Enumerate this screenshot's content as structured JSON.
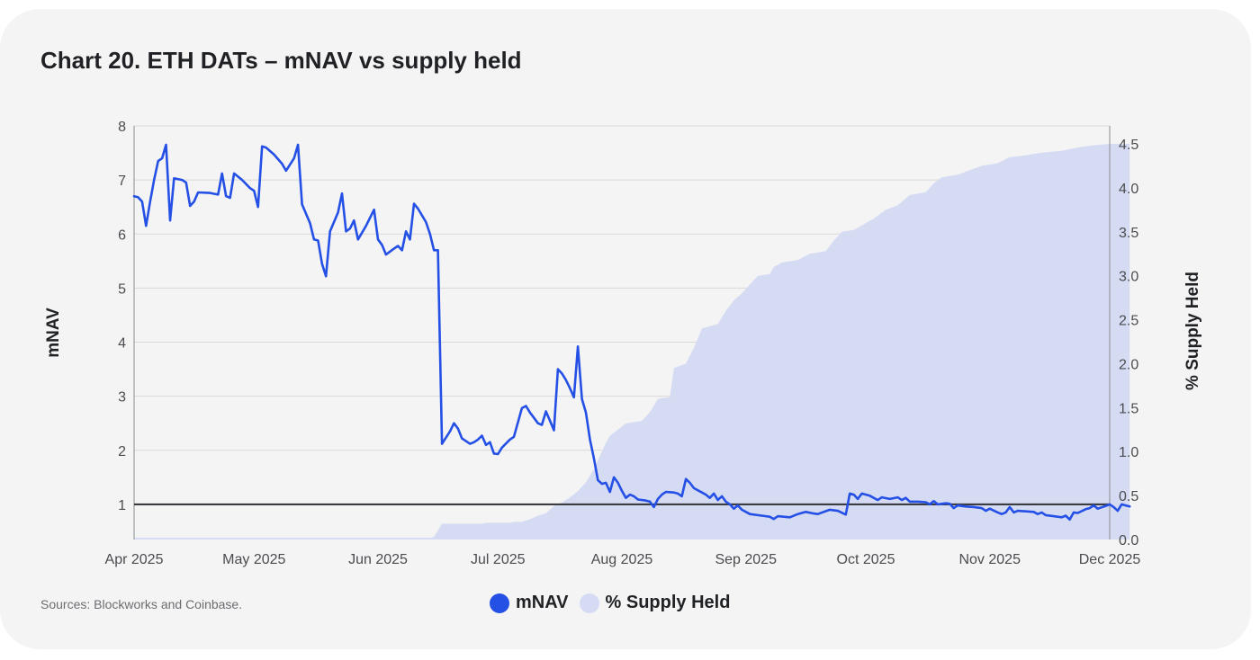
{
  "title": "Chart 20.  ETH DATs – mNAV vs supply held",
  "source": "Sources: Blockworks and Coinbase.",
  "colors": {
    "mnav": "#2450e6",
    "supply": "#d6dbf4",
    "reference_line": "#3a3c40",
    "grid": "#d8d8d8"
  },
  "chart_data": {
    "type": "line",
    "xlim": [
      "2025-04-01",
      "2025-12-01"
    ],
    "x_ticks": [
      "Apr 2025",
      "May 2025",
      "Jun 2025",
      "Jul 2025",
      "Aug 2025",
      "Sep 2025",
      "Oct 2025",
      "Nov 2025",
      "Dec 2025"
    ],
    "y_left": {
      "label": "mNAV",
      "range": [
        0.35,
        8
      ],
      "ticks": [
        1,
        2,
        3,
        4,
        5,
        6,
        7,
        8
      ]
    },
    "y_right": {
      "label": "% Supply Held",
      "range": [
        0,
        4.5
      ],
      "ticks": [
        "0.0",
        "0.5",
        "1.0",
        "1.5",
        "2.0",
        "2.5",
        "3.0",
        "3.5",
        "4.0",
        "4.5"
      ]
    },
    "reference_line": {
      "axis": "left",
      "y": 1
    },
    "grid": "horizontal",
    "legend": {
      "placement": "bottom-center",
      "entries": [
        "mNAV",
        "% Supply Held"
      ]
    },
    "series": [
      {
        "name": "mNAV",
        "type": "line",
        "axis": "left",
        "points": [
          [
            "2025-04-01",
            6.7
          ],
          [
            "2025-04-02",
            6.68
          ],
          [
            "2025-04-03",
            6.6
          ],
          [
            "2025-04-04",
            6.15
          ],
          [
            "2025-04-05",
            6.6
          ],
          [
            "2025-04-06",
            7.0
          ],
          [
            "2025-04-07",
            7.35
          ],
          [
            "2025-04-08",
            7.4
          ],
          [
            "2025-04-09",
            7.65
          ],
          [
            "2025-04-10",
            6.25
          ],
          [
            "2025-04-11",
            7.03
          ],
          [
            "2025-04-13",
            7.0
          ],
          [
            "2025-04-14",
            6.95
          ],
          [
            "2025-04-15",
            6.52
          ],
          [
            "2025-04-16",
            6.6
          ],
          [
            "2025-04-17",
            6.77
          ],
          [
            "2025-04-20",
            6.76
          ],
          [
            "2025-04-22",
            6.73
          ],
          [
            "2025-04-23",
            7.12
          ],
          [
            "2025-04-24",
            6.7
          ],
          [
            "2025-04-25",
            6.67
          ],
          [
            "2025-04-26",
            7.12
          ],
          [
            "2025-04-28",
            7.0
          ],
          [
            "2025-04-30",
            6.85
          ],
          [
            "2025-05-01",
            6.8
          ],
          [
            "2025-05-02",
            6.5
          ],
          [
            "2025-05-03",
            7.62
          ],
          [
            "2025-05-04",
            7.6
          ],
          [
            "2025-05-06",
            7.47
          ],
          [
            "2025-05-08",
            7.3
          ],
          [
            "2025-05-09",
            7.17
          ],
          [
            "2025-05-11",
            7.4
          ],
          [
            "2025-05-12",
            7.65
          ],
          [
            "2025-05-13",
            6.55
          ],
          [
            "2025-05-15",
            6.2
          ],
          [
            "2025-05-16",
            5.9
          ],
          [
            "2025-05-17",
            5.88
          ],
          [
            "2025-05-18",
            5.45
          ],
          [
            "2025-05-19",
            5.22
          ],
          [
            "2025-05-20",
            6.05
          ],
          [
            "2025-05-22",
            6.4
          ],
          [
            "2025-05-23",
            6.75
          ],
          [
            "2025-05-24",
            6.05
          ],
          [
            "2025-05-25",
            6.1
          ],
          [
            "2025-05-26",
            6.25
          ],
          [
            "2025-05-27",
            5.9
          ],
          [
            "2025-05-29",
            6.15
          ],
          [
            "2025-05-31",
            6.45
          ],
          [
            "2025-06-01",
            5.9
          ],
          [
            "2025-06-02",
            5.8
          ],
          [
            "2025-06-03",
            5.62
          ],
          [
            "2025-06-05",
            5.73
          ],
          [
            "2025-06-06",
            5.78
          ],
          [
            "2025-06-07",
            5.7
          ],
          [
            "2025-06-08",
            6.05
          ],
          [
            "2025-06-09",
            5.9
          ],
          [
            "2025-06-10",
            6.56
          ],
          [
            "2025-06-11",
            6.47
          ],
          [
            "2025-06-13",
            6.22
          ],
          [
            "2025-06-14",
            6.0
          ],
          [
            "2025-06-15",
            5.7
          ],
          [
            "2025-06-16",
            5.7
          ],
          [
            "2025-06-17",
            2.12
          ],
          [
            "2025-06-19",
            2.35
          ],
          [
            "2025-06-20",
            2.5
          ],
          [
            "2025-06-21",
            2.4
          ],
          [
            "2025-06-22",
            2.22
          ],
          [
            "2025-06-24",
            2.12
          ],
          [
            "2025-06-25",
            2.15
          ],
          [
            "2025-06-26",
            2.2
          ],
          [
            "2025-06-27",
            2.27
          ],
          [
            "2025-06-28",
            2.1
          ],
          [
            "2025-06-29",
            2.15
          ],
          [
            "2025-06-30",
            1.94
          ],
          [
            "2025-07-01",
            1.93
          ],
          [
            "2025-07-02",
            2.05
          ],
          [
            "2025-07-04",
            2.2
          ],
          [
            "2025-07-05",
            2.25
          ],
          [
            "2025-07-07",
            2.78
          ],
          [
            "2025-07-08",
            2.82
          ],
          [
            "2025-07-09",
            2.7
          ],
          [
            "2025-07-10",
            2.6
          ],
          [
            "2025-07-11",
            2.5
          ],
          [
            "2025-07-12",
            2.47
          ],
          [
            "2025-07-13",
            2.72
          ],
          [
            "2025-07-14",
            2.55
          ],
          [
            "2025-07-15",
            2.37
          ],
          [
            "2025-07-16",
            3.5
          ],
          [
            "2025-07-17",
            3.42
          ],
          [
            "2025-07-18",
            3.3
          ],
          [
            "2025-07-19",
            3.15
          ],
          [
            "2025-07-20",
            2.98
          ],
          [
            "2025-07-21",
            3.92
          ],
          [
            "2025-07-22",
            2.95
          ],
          [
            "2025-07-23",
            2.7
          ],
          [
            "2025-07-24",
            2.2
          ],
          [
            "2025-07-25",
            1.85
          ],
          [
            "2025-07-26",
            1.45
          ],
          [
            "2025-07-27",
            1.38
          ],
          [
            "2025-07-28",
            1.4
          ],
          [
            "2025-07-29",
            1.23
          ],
          [
            "2025-07-30",
            1.5
          ],
          [
            "2025-07-31",
            1.4
          ],
          [
            "2025-08-01",
            1.25
          ],
          [
            "2025-08-02",
            1.12
          ],
          [
            "2025-08-03",
            1.18
          ],
          [
            "2025-08-04",
            1.15
          ],
          [
            "2025-08-05",
            1.09
          ],
          [
            "2025-08-07",
            1.07
          ],
          [
            "2025-08-08",
            1.05
          ],
          [
            "2025-08-09",
            0.95
          ],
          [
            "2025-08-10",
            1.1
          ],
          [
            "2025-08-11",
            1.18
          ],
          [
            "2025-08-12",
            1.23
          ],
          [
            "2025-08-14",
            1.22
          ],
          [
            "2025-08-15",
            1.2
          ],
          [
            "2025-08-16",
            1.15
          ],
          [
            "2025-08-17",
            1.47
          ],
          [
            "2025-08-18",
            1.4
          ],
          [
            "2025-08-19",
            1.3
          ],
          [
            "2025-08-21",
            1.22
          ],
          [
            "2025-08-22",
            1.18
          ],
          [
            "2025-08-23",
            1.12
          ],
          [
            "2025-08-24",
            1.2
          ],
          [
            "2025-08-25",
            1.08
          ],
          [
            "2025-08-26",
            1.15
          ],
          [
            "2025-08-27",
            1.05
          ],
          [
            "2025-08-28",
            1.0
          ],
          [
            "2025-08-29",
            0.92
          ],
          [
            "2025-08-30",
            0.98
          ],
          [
            "2025-08-31",
            0.9
          ],
          [
            "2025-09-02",
            0.82
          ],
          [
            "2025-09-05",
            0.79
          ],
          [
            "2025-09-07",
            0.77
          ],
          [
            "2025-09-08",
            0.73
          ],
          [
            "2025-09-09",
            0.78
          ],
          [
            "2025-09-12",
            0.76
          ],
          [
            "2025-09-14",
            0.82
          ],
          [
            "2025-09-16",
            0.86
          ],
          [
            "2025-09-18",
            0.83
          ],
          [
            "2025-09-19",
            0.82
          ],
          [
            "2025-09-22",
            0.9
          ],
          [
            "2025-09-24",
            0.88
          ],
          [
            "2025-09-26",
            0.81
          ],
          [
            "2025-09-27",
            1.2
          ],
          [
            "2025-09-28",
            1.18
          ],
          [
            "2025-09-29",
            1.1
          ],
          [
            "2025-09-30",
            1.2
          ],
          [
            "2025-10-02",
            1.16
          ],
          [
            "2025-10-04",
            1.08
          ],
          [
            "2025-10-05",
            1.13
          ],
          [
            "2025-10-07",
            1.1
          ],
          [
            "2025-10-09",
            1.13
          ],
          [
            "2025-10-10",
            1.08
          ],
          [
            "2025-10-11",
            1.12
          ],
          [
            "2025-10-12",
            1.05
          ],
          [
            "2025-10-14",
            1.05
          ],
          [
            "2025-10-16",
            1.04
          ],
          [
            "2025-10-17",
            1.0
          ],
          [
            "2025-10-18",
            1.06
          ],
          [
            "2025-10-19",
            1.0
          ],
          [
            "2025-10-21",
            1.02
          ],
          [
            "2025-10-22",
            1.01
          ],
          [
            "2025-10-23",
            0.93
          ],
          [
            "2025-10-24",
            0.98
          ],
          [
            "2025-10-26",
            0.96
          ],
          [
            "2025-10-28",
            0.95
          ],
          [
            "2025-10-30",
            0.93
          ],
          [
            "2025-10-31",
            0.88
          ],
          [
            "2025-11-01",
            0.92
          ],
          [
            "2025-11-03",
            0.85
          ],
          [
            "2025-11-04",
            0.82
          ],
          [
            "2025-11-05",
            0.85
          ],
          [
            "2025-11-06",
            0.95
          ],
          [
            "2025-11-07",
            0.85
          ],
          [
            "2025-11-08",
            0.88
          ],
          [
            "2025-11-10",
            0.87
          ],
          [
            "2025-11-12",
            0.86
          ],
          [
            "2025-11-13",
            0.82
          ],
          [
            "2025-11-14",
            0.85
          ],
          [
            "2025-11-15",
            0.8
          ],
          [
            "2025-11-17",
            0.78
          ],
          [
            "2025-11-19",
            0.76
          ],
          [
            "2025-11-20",
            0.79
          ],
          [
            "2025-11-21",
            0.72
          ],
          [
            "2025-11-22",
            0.85
          ],
          [
            "2025-11-23",
            0.84
          ],
          [
            "2025-11-25",
            0.91
          ],
          [
            "2025-11-26",
            0.93
          ],
          [
            "2025-11-27",
            0.98
          ],
          [
            "2025-11-28",
            0.92
          ],
          [
            "2025-11-30",
            0.97
          ],
          [
            "2025-12-01",
            1.0
          ],
          [
            "2025-12-02",
            0.95
          ],
          [
            "2025-12-03",
            0.88
          ],
          [
            "2025-12-04",
            1.0
          ],
          [
            "2025-12-05",
            0.98
          ],
          [
            "2025-12-06",
            0.96
          ]
        ]
      },
      {
        "name": "% Supply Held",
        "type": "area",
        "axis": "right",
        "points": [
          [
            "2025-04-01",
            0.02
          ],
          [
            "2025-06-14",
            0.02
          ],
          [
            "2025-06-15",
            0.03
          ],
          [
            "2025-06-17",
            0.18
          ],
          [
            "2025-06-27",
            0.18
          ],
          [
            "2025-06-28",
            0.19
          ],
          [
            "2025-07-04",
            0.19
          ],
          [
            "2025-07-05",
            0.2
          ],
          [
            "2025-07-07",
            0.2
          ],
          [
            "2025-07-09",
            0.23
          ],
          [
            "2025-07-11",
            0.27
          ],
          [
            "2025-07-13",
            0.3
          ],
          [
            "2025-07-15",
            0.38
          ],
          [
            "2025-07-17",
            0.42
          ],
          [
            "2025-07-19",
            0.48
          ],
          [
            "2025-07-21",
            0.55
          ],
          [
            "2025-07-23",
            0.65
          ],
          [
            "2025-07-25",
            0.8
          ],
          [
            "2025-07-26",
            0.9
          ],
          [
            "2025-07-27",
            1.0
          ],
          [
            "2025-07-28",
            1.1
          ],
          [
            "2025-07-29",
            1.18
          ],
          [
            "2025-07-31",
            1.25
          ],
          [
            "2025-08-02",
            1.32
          ],
          [
            "2025-08-06",
            1.35
          ],
          [
            "2025-08-08",
            1.45
          ],
          [
            "2025-08-10",
            1.6
          ],
          [
            "2025-08-13",
            1.62
          ],
          [
            "2025-08-14",
            1.95
          ],
          [
            "2025-08-17",
            2.0
          ],
          [
            "2025-08-19",
            2.18
          ],
          [
            "2025-08-21",
            2.4
          ],
          [
            "2025-08-25",
            2.45
          ],
          [
            "2025-08-27",
            2.6
          ],
          [
            "2025-08-29",
            2.72
          ],
          [
            "2025-08-31",
            2.8
          ],
          [
            "2025-09-02",
            2.9
          ],
          [
            "2025-09-04",
            3.0
          ],
          [
            "2025-09-07",
            3.02
          ],
          [
            "2025-09-08",
            3.1
          ],
          [
            "2025-09-10",
            3.15
          ],
          [
            "2025-09-14",
            3.18
          ],
          [
            "2025-09-17",
            3.25
          ],
          [
            "2025-09-21",
            3.28
          ],
          [
            "2025-09-23",
            3.4
          ],
          [
            "2025-09-25",
            3.5
          ],
          [
            "2025-09-28",
            3.52
          ],
          [
            "2025-10-01",
            3.6
          ],
          [
            "2025-10-03",
            3.65
          ],
          [
            "2025-10-06",
            3.75
          ],
          [
            "2025-10-09",
            3.8
          ],
          [
            "2025-10-12",
            3.92
          ],
          [
            "2025-10-16",
            3.95
          ],
          [
            "2025-10-18",
            4.05
          ],
          [
            "2025-10-20",
            4.12
          ],
          [
            "2025-10-24",
            4.15
          ],
          [
            "2025-10-27",
            4.2
          ],
          [
            "2025-10-30",
            4.25
          ],
          [
            "2025-11-03",
            4.28
          ],
          [
            "2025-11-06",
            4.35
          ],
          [
            "2025-11-10",
            4.37
          ],
          [
            "2025-11-14",
            4.4
          ],
          [
            "2025-11-19",
            4.42
          ],
          [
            "2025-11-22",
            4.45
          ],
          [
            "2025-11-26",
            4.48
          ],
          [
            "2025-12-01",
            4.5
          ],
          [
            "2025-12-06",
            4.5
          ]
        ]
      }
    ]
  }
}
